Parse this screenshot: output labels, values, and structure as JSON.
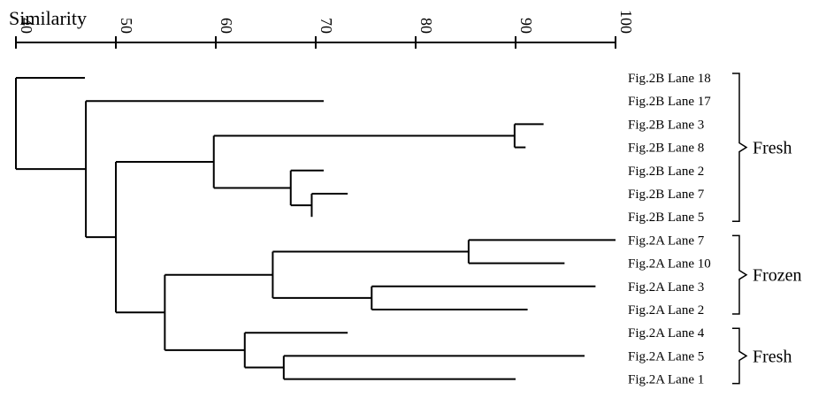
{
  "axis": {
    "title": "Similarity",
    "min": 40,
    "max": 100,
    "ticks": [
      "40",
      "50",
      "60",
      "70",
      "80",
      "90",
      "100"
    ]
  },
  "leaves": [
    "Fig.2B Lane 18",
    "Fig.2B Lane 17",
    "Fig.2B Lane 3",
    "Fig.2B Lane 8",
    "Fig.2B Lane 2",
    "Fig.2B Lane 7",
    "Fig.2B Lane 5",
    "Fig.2A Lane 7",
    "Fig.2A Lane 10",
    "Fig.2A Lane 3",
    "Fig.2A Lane 2",
    "Fig.2A Lane 4",
    "Fig.2A Lane 5",
    "Fig.2A Lane 1"
  ],
  "groups": [
    {
      "label": "Fresh",
      "from": 0,
      "to": 6
    },
    {
      "label": "Frozen",
      "from": 7,
      "to": 10
    },
    {
      "label": "Fresh",
      "from": 11,
      "to": 13
    }
  ],
  "tree": {
    "sim": 40.0,
    "children": [
      {
        "leaf": 0,
        "end": 46.9
      },
      {
        "sim": 47.0,
        "children": [
          {
            "leaf": 1,
            "end": 70.8
          },
          {
            "sim": 50.0,
            "children": [
              {
                "sim": 59.8,
                "children": [
                  {
                    "sim": 89.9,
                    "children": [
                      {
                        "leaf": 2,
                        "end": 92.8
                      },
                      {
                        "leaf": 3,
                        "end": 91.0
                      }
                    ]
                  },
                  {
                    "sim": 67.5,
                    "children": [
                      {
                        "leaf": 4,
                        "end": 70.8
                      },
                      {
                        "sim": 69.6,
                        "children": [
                          {
                            "leaf": 5,
                            "end": 73.2
                          },
                          {
                            "leaf": 6,
                            "end": 69.6
                          }
                        ]
                      }
                    ]
                  }
                ]
              },
              {
                "sim": 54.9,
                "children": [
                  {
                    "sim": 65.7,
                    "children": [
                      {
                        "sim": 85.3,
                        "children": [
                          {
                            "leaf": 7,
                            "end": 100
                          },
                          {
                            "leaf": 8,
                            "end": 94.9
                          }
                        ]
                      },
                      {
                        "sim": 75.6,
                        "children": [
                          {
                            "leaf": 9,
                            "end": 98.0
                          },
                          {
                            "leaf": 10,
                            "end": 91.2
                          }
                        ]
                      }
                    ]
                  },
                  {
                    "sim": 62.9,
                    "children": [
                      {
                        "leaf": 11,
                        "end": 73.2
                      },
                      {
                        "sim": 66.8,
                        "children": [
                          {
                            "leaf": 12,
                            "end": 96.9
                          },
                          {
                            "leaf": 13,
                            "end": 90.0
                          }
                        ]
                      }
                    ]
                  }
                ]
              }
            ]
          }
        ]
      }
    ]
  }
}
